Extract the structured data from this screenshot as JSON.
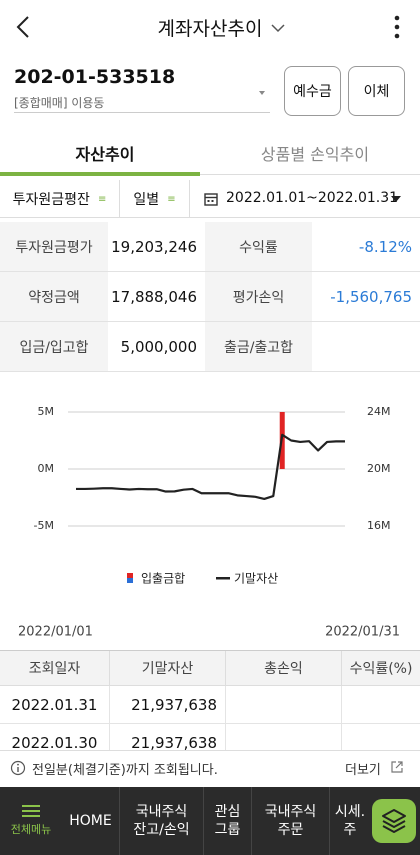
{
  "header": {
    "title": "계좌자산추이"
  },
  "account": {
    "number": "202-01-533518",
    "type": "[종합매매] 이용동"
  },
  "buttons": [
    "예수금",
    "이체"
  ],
  "tabs": [
    "자산추이",
    "상품별 손익추이"
  ],
  "filters": {
    "options": [
      "투자원금평잔",
      "일별"
    ],
    "date_range": "2022.01.01~2022.01.31"
  },
  "summary": {
    "rows": [
      [
        "투자원금평가",
        "19,203,246",
        "수익률",
        "-8.12%"
      ],
      [
        "약정금액",
        "17,888,046",
        "평가손익",
        "-1,560,765"
      ],
      [
        "입금/입고합",
        "5,000,000",
        "출금/출고합"
      ]
    ]
  },
  "chart_data": {
    "type": "combo",
    "categories": [
      "2022/01/01",
      null,
      null,
      null,
      null,
      null,
      null,
      null,
      null,
      null,
      null,
      null,
      null,
      null,
      null,
      null,
      null,
      null,
      null,
      null,
      null,
      null,
      null,
      null,
      null,
      null,
      null,
      null,
      null,
      null,
      "2022/01/31"
    ],
    "series": [
      {
        "name": "입출금합",
        "type": "bar",
        "color": "#e02424",
        "axis": "y",
        "values": [
          null,
          null,
          null,
          null,
          null,
          null,
          null,
          null,
          null,
          null,
          null,
          null,
          null,
          null,
          null,
          null,
          null,
          null,
          null,
          null,
          null,
          null,
          null,
          5000000,
          null,
          null,
          null,
          null,
          null,
          null,
          null
        ]
      },
      {
        "name": "기말자산",
        "type": "line",
        "color": "#222222",
        "axis": "y2",
        "values": [
          18600000,
          18600000,
          18620000,
          18650000,
          18650000,
          18600000,
          18560000,
          18600000,
          18580000,
          18580000,
          18420000,
          18430000,
          18550000,
          18600000,
          18300000,
          18300000,
          18300000,
          18300000,
          18150000,
          18100000,
          18050000,
          17900000,
          18100000,
          22400000,
          22000000,
          21900000,
          21950000,
          21300000,
          21900000,
          21937638,
          21937638
        ]
      }
    ],
    "ylim": [
      -5000000,
      5000000
    ],
    "yticks": [
      {
        "value": -5000000,
        "label": "-5M"
      },
      {
        "value": 0,
        "label": "0M"
      },
      {
        "value": 5000000,
        "label": "5M"
      }
    ],
    "y2lim": [
      16000000,
      24000000
    ],
    "y2ticks": [
      {
        "value": 16000000,
        "label": "16M"
      },
      {
        "value": 20000000,
        "label": "20M"
      },
      {
        "value": 24000000,
        "label": "24M"
      }
    ],
    "grid": true,
    "legend": "bottom"
  },
  "table": {
    "columns": [
      "조회일자",
      "기말자산",
      "총손익",
      "수익률(%)"
    ],
    "rows": [
      [
        "2022.01.31",
        "21,937,638"
      ],
      [
        "2022.01.30",
        "21,937,638"
      ]
    ]
  },
  "notice": {
    "text": "전일분(체결기준)까지 조회됩니다.",
    "more": "더보기"
  },
  "nav": [
    [
      "전체메뉴"
    ],
    [
      "HOME"
    ],
    [
      "국내주식",
      "잔고/손익"
    ],
    [
      "관심",
      "그룹"
    ],
    [
      "국내주식",
      "주문"
    ],
    [
      "시세.",
      "주"
    ]
  ]
}
